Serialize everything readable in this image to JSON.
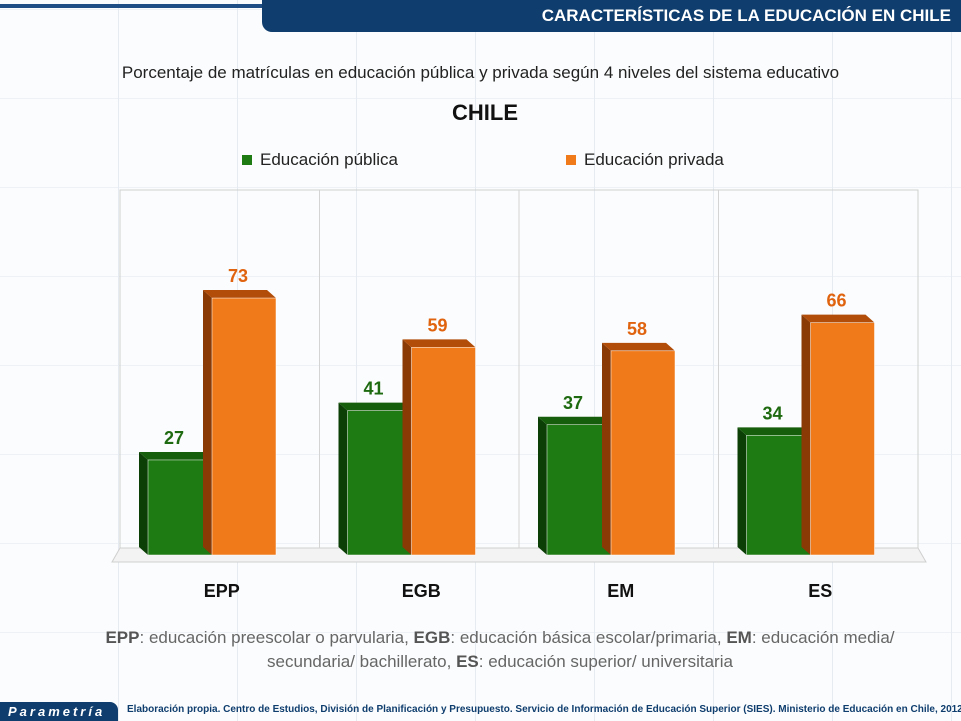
{
  "header": {
    "banner": "CARACTERÍSTICAS DE LA EDUCACIÓN EN CHILE"
  },
  "chart_data": {
    "type": "bar",
    "title": "CHILE",
    "subtitle": "Porcentaje de matrículas en educación pública y privada según 4 niveles del sistema educativo",
    "categories": [
      "EPP",
      "EGB",
      "EM",
      "ES"
    ],
    "series": [
      {
        "name": "Educación pública",
        "color": "#1e7a12",
        "values": [
          27,
          41,
          37,
          34
        ]
      },
      {
        "name": "Educación privada",
        "color": "#f07a1a",
        "values": [
          73,
          59,
          58,
          66
        ]
      }
    ],
    "ylim": [
      0,
      100
    ],
    "legend": "top"
  },
  "note": {
    "parts": [
      {
        "b": "EPP",
        "t": ": educación preescolar o parvularia, "
      },
      {
        "b": "EGB",
        "t": ": educación básica escolar/primaria, "
      },
      {
        "b": "EM",
        "t": ": educación media/ secundaria/ bachillerato, "
      },
      {
        "b": "ES",
        "t": ": educación superior/ universitaria"
      }
    ]
  },
  "footer": {
    "logo": "Parametría",
    "source": "Elaboración propia. Centro de Estudios, División de Planificación y Presupuesto. Servicio de Información de Educación Superior (SIES). Ministerio de Educación en Chile, 2012."
  }
}
